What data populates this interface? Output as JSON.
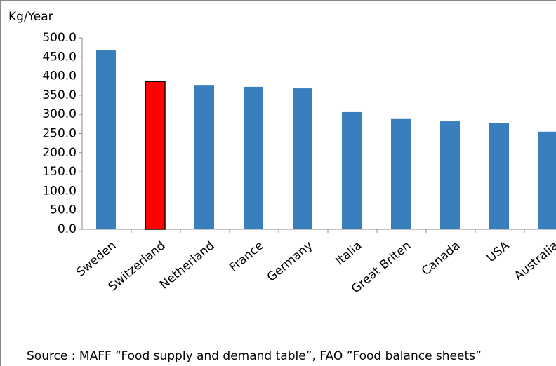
{
  "chart_data": {
    "type": "bar",
    "y_label": "Kg/Year",
    "categories": [
      "Sweden",
      "Switzerland",
      "Netherland",
      "France",
      "Germany",
      "Italia",
      "Great Briten",
      "Canada",
      "USA",
      "Australia"
    ],
    "values": [
      467,
      386,
      377,
      372,
      368,
      306,
      288,
      282,
      278,
      255
    ],
    "colors": [
      "#3a7fbd",
      "#ff0000",
      "#3a7fbd",
      "#3a7fbd",
      "#3a7fbd",
      "#3a7fbd",
      "#3a7fbd",
      "#3a7fbd",
      "#3a7fbd",
      "#3a7fbd"
    ],
    "ylim": [
      0,
      500
    ],
    "yticks": [
      {
        "value": 0,
        "label": "0.0"
      },
      {
        "value": 50,
        "label": "50.0"
      },
      {
        "value": 100,
        "label": "100.0"
      },
      {
        "value": 150,
        "label": "150.0"
      },
      {
        "value": 200,
        "label": "200.0"
      },
      {
        "value": 250,
        "label": "250.0"
      },
      {
        "value": 300,
        "label": "300.0"
      },
      {
        "value": 350,
        "label": "350.0"
      },
      {
        "value": 400,
        "label": "400.0"
      },
      {
        "value": 450,
        "label": "450.0"
      },
      {
        "value": 500,
        "label": "500.0"
      }
    ],
    "grid": false,
    "note": "Source : MAFF “Food supply and demand table”, FAO ”Food balance sheets”"
  }
}
